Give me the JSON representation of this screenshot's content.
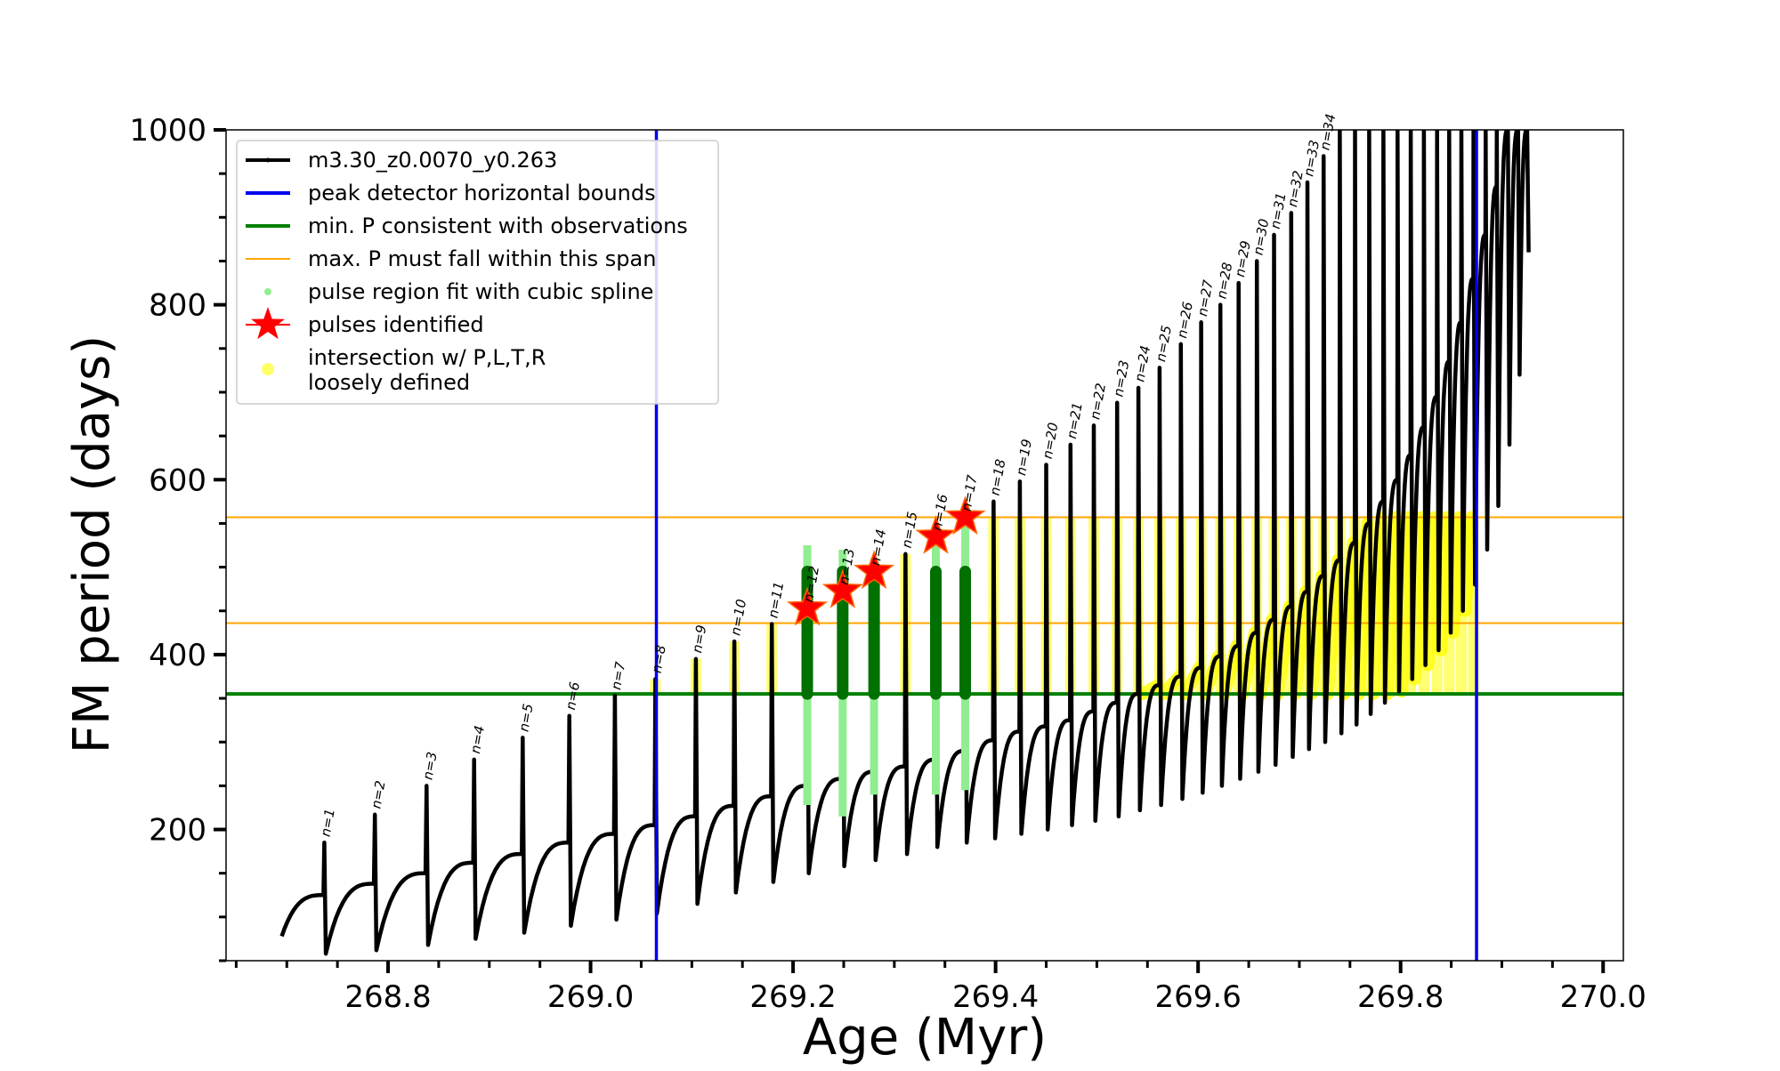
{
  "chart_data": {
    "type": "line",
    "xlabel": "Age (Myr)",
    "ylabel": "FM period (days)",
    "xlim": [
      268.64,
      270.02
    ],
    "ylim": [
      50,
      1000
    ],
    "xticks": [
      {
        "value": 268.8,
        "label": "268.8"
      },
      {
        "value": 269.0,
        "label": "269.0"
      },
      {
        "value": 269.2,
        "label": "269.2"
      },
      {
        "value": 269.4,
        "label": "269.4"
      },
      {
        "value": 269.6,
        "label": "269.6"
      },
      {
        "value": 269.8,
        "label": "269.8"
      },
      {
        "value": 270.0,
        "label": "270.0"
      }
    ],
    "yticks": [
      {
        "value": 200,
        "label": "200"
      },
      {
        "value": 400,
        "label": "400"
      },
      {
        "value": 600,
        "label": "600"
      },
      {
        "value": 800,
        "label": "800"
      },
      {
        "value": 1000,
        "label": "1000"
      }
    ],
    "legend": {
      "position": "upper left",
      "entries": [
        {
          "label": "m3.30_z0.0070_y0.263",
          "marker": "line-dot",
          "color": "#000000"
        },
        {
          "label": "peak detector horizontal bounds",
          "marker": "line",
          "color": "#0000ee"
        },
        {
          "label": "min. P consistent with observations",
          "marker": "line",
          "color": "#008000"
        },
        {
          "label": "max. P must fall within this span",
          "marker": "line",
          "color": "#ffa500"
        },
        {
          "label": "pulse region fit with cubic spline",
          "marker": "dot",
          "color": "#90ee90"
        },
        {
          "label": "pulses identified",
          "marker": "star",
          "color": "#ff0000"
        },
        {
          "label": "intersection w/ P,L,T,R",
          "label2": "loosely defined",
          "marker": "dot",
          "color": "#ffff00"
        }
      ]
    },
    "vertical_lines": [
      {
        "name": "peak detector horizontal bounds",
        "x": 269.065,
        "color": "#0000ee"
      },
      {
        "name": "peak detector horizontal bounds",
        "x": 269.875,
        "color": "#0000ee"
      }
    ],
    "horizontal_lines": [
      {
        "name": "min. P consistent with observations",
        "y": 355,
        "color": "#008000"
      },
      {
        "name": "max. P must fall within this span",
        "y": 557,
        "color": "#ffa500"
      },
      {
        "name": "max. P must fall within this span",
        "y": 436,
        "color": "#ffa500"
      }
    ],
    "pulse_labels": [
      "n=1",
      "n=2",
      "n=3",
      "n=4",
      "n=5",
      "n=6",
      "n=7",
      "n=8",
      "n=9",
      "n=10",
      "n=11",
      "n=12",
      "n=13",
      "n=14",
      "n=15",
      "n=16",
      "n=17",
      "n=18",
      "n=19",
      "n=20",
      "n=21",
      "n=22",
      "n=23",
      "n=24",
      "n=25",
      "n=26",
      "n=27",
      "n=28",
      "n=29",
      "n=30",
      "n=31",
      "n=32",
      "n=33",
      "n=34"
    ],
    "pulses": [
      {
        "n": 1,
        "age": 268.737,
        "peak": 185,
        "base": 125,
        "min": 58
      },
      {
        "n": 2,
        "age": 268.787,
        "peak": 217,
        "base": 138,
        "min": 62
      },
      {
        "n": 3,
        "age": 268.838,
        "peak": 250,
        "base": 150,
        "min": 68
      },
      {
        "n": 4,
        "age": 268.885,
        "peak": 280,
        "base": 162,
        "min": 75
      },
      {
        "n": 5,
        "age": 268.933,
        "peak": 305,
        "base": 172,
        "min": 82
      },
      {
        "n": 6,
        "age": 268.979,
        "peak": 330,
        "base": 185,
        "min": 90
      },
      {
        "n": 7,
        "age": 269.024,
        "peak": 353,
        "base": 195,
        "min": 97
      },
      {
        "n": 8,
        "age": 269.064,
        "peak": 372,
        "base": 205,
        "min": 104
      },
      {
        "n": 9,
        "age": 269.104,
        "peak": 395,
        "base": 215,
        "min": 115
      },
      {
        "n": 10,
        "age": 269.142,
        "peak": 415,
        "base": 227,
        "min": 128
      },
      {
        "n": 11,
        "age": 269.179,
        "peak": 435,
        "base": 238,
        "min": 140
      },
      {
        "n": 12,
        "age": 269.214,
        "peak": 453,
        "base": 250,
        "min": 150
      },
      {
        "n": 13,
        "age": 269.249,
        "peak": 473,
        "base": 258,
        "min": 158
      },
      {
        "n": 14,
        "age": 269.28,
        "peak": 495,
        "base": 266,
        "min": 165
      },
      {
        "n": 15,
        "age": 269.311,
        "peak": 515,
        "base": 272,
        "min": 172
      },
      {
        "n": 16,
        "age": 269.341,
        "peak": 535,
        "base": 280,
        "min": 180
      },
      {
        "n": 17,
        "age": 269.37,
        "peak": 557,
        "base": 290,
        "min": 185
      },
      {
        "n": 18,
        "age": 269.398,
        "peak": 575,
        "base": 302,
        "min": 190
      },
      {
        "n": 19,
        "age": 269.424,
        "peak": 598,
        "base": 312,
        "min": 195
      },
      {
        "n": 20,
        "age": 269.45,
        "peak": 617,
        "base": 318,
        "min": 200
      },
      {
        "n": 21,
        "age": 269.474,
        "peak": 640,
        "base": 325,
        "min": 205
      },
      {
        "n": 22,
        "age": 269.497,
        "peak": 662,
        "base": 335,
        "min": 210
      },
      {
        "n": 23,
        "age": 269.52,
        "peak": 688,
        "base": 345,
        "min": 215
      },
      {
        "n": 24,
        "age": 269.541,
        "peak": 705,
        "base": 355,
        "min": 222
      },
      {
        "n": 25,
        "age": 269.562,
        "peak": 728,
        "base": 365,
        "min": 228
      },
      {
        "n": 26,
        "age": 269.583,
        "peak": 755,
        "base": 375,
        "min": 235
      },
      {
        "n": 27,
        "age": 269.603,
        "peak": 780,
        "base": 385,
        "min": 242
      },
      {
        "n": 28,
        "age": 269.622,
        "peak": 800,
        "base": 398,
        "min": 250
      },
      {
        "n": 29,
        "age": 269.64,
        "peak": 825,
        "base": 410,
        "min": 258
      },
      {
        "n": 30,
        "age": 269.658,
        "peak": 850,
        "base": 425,
        "min": 266
      },
      {
        "n": 31,
        "age": 269.675,
        "peak": 880,
        "base": 440,
        "min": 274
      },
      {
        "n": 32,
        "age": 269.692,
        "peak": 905,
        "base": 455,
        "min": 283
      },
      {
        "n": 33,
        "age": 269.708,
        "peak": 940,
        "base": 472,
        "min": 292
      },
      {
        "n": 34,
        "age": 269.724,
        "peak": 970,
        "base": 490,
        "min": 300
      }
    ],
    "late_pulses": [
      {
        "age": 269.74,
        "peak": 1000,
        "base": 508,
        "min": 310
      },
      {
        "age": 269.755,
        "peak": 1000,
        "base": 528,
        "min": 320
      },
      {
        "age": 269.769,
        "peak": 1000,
        "base": 550,
        "min": 332
      },
      {
        "age": 269.783,
        "peak": 1000,
        "base": 575,
        "min": 345
      },
      {
        "age": 269.797,
        "peak": 1000,
        "base": 600,
        "min": 358
      },
      {
        "age": 269.81,
        "peak": 1000,
        "base": 628,
        "min": 372
      },
      {
        "age": 269.823,
        "peak": 1000,
        "base": 660,
        "min": 388
      },
      {
        "age": 269.836,
        "peak": 1000,
        "base": 695,
        "min": 405
      },
      {
        "age": 269.848,
        "peak": 1000,
        "base": 735,
        "min": 425
      },
      {
        "age": 269.86,
        "peak": 1000,
        "base": 780,
        "min": 450
      },
      {
        "age": 269.872,
        "peak": 1000,
        "base": 830,
        "min": 480
      },
      {
        "age": 269.884,
        "peak": 1000,
        "base": 880,
        "min": 520
      },
      {
        "age": 269.895,
        "peak": 1000,
        "base": 935,
        "min": 570
      },
      {
        "age": 269.906,
        "peak": 1000,
        "base": 1000,
        "min": 640
      },
      {
        "age": 269.916,
        "peak": 1000,
        "base": 1000,
        "min": 720
      },
      {
        "age": 269.925,
        "peak": 1000,
        "base": 1000,
        "min": 860
      }
    ],
    "identified_pulses": [
      {
        "n": 12,
        "age": 269.214,
        "period": 453
      },
      {
        "n": 13,
        "age": 269.249,
        "period": 473
      },
      {
        "n": 14,
        "age": 269.28,
        "period": 495
      },
      {
        "n": 16,
        "age": 269.341,
        "period": 535
      },
      {
        "n": 17,
        "age": 269.37,
        "period": 557
      }
    ],
    "spline_fit_regions": [
      {
        "n": 12,
        "age": 269.214,
        "from": 228,
        "to": 525
      },
      {
        "n": 13,
        "age": 269.249,
        "from": 215,
        "to": 520
      },
      {
        "n": 14,
        "age": 269.28,
        "from": 240,
        "to": 510
      },
      {
        "n": 16,
        "age": 269.341,
        "from": 240,
        "to": 545
      },
      {
        "n": 17,
        "age": 269.37,
        "from": 245,
        "to": 565
      }
    ],
    "observation_consistent_regions": [
      {
        "n": 12,
        "age": 269.214,
        "from": 355,
        "to": 495
      },
      {
        "n": 13,
        "age": 269.249,
        "from": 355,
        "to": 495
      },
      {
        "n": 14,
        "age": 269.28,
        "from": 355,
        "to": 495
      },
      {
        "n": 16,
        "age": 269.341,
        "from": 355,
        "to": 495
      },
      {
        "n": 17,
        "age": 269.37,
        "from": 355,
        "to": 495
      }
    ],
    "loosely_defined_intersections": {
      "y_range": [
        355,
        557
      ],
      "x_range": [
        269.06,
        269.88
      ]
    }
  }
}
